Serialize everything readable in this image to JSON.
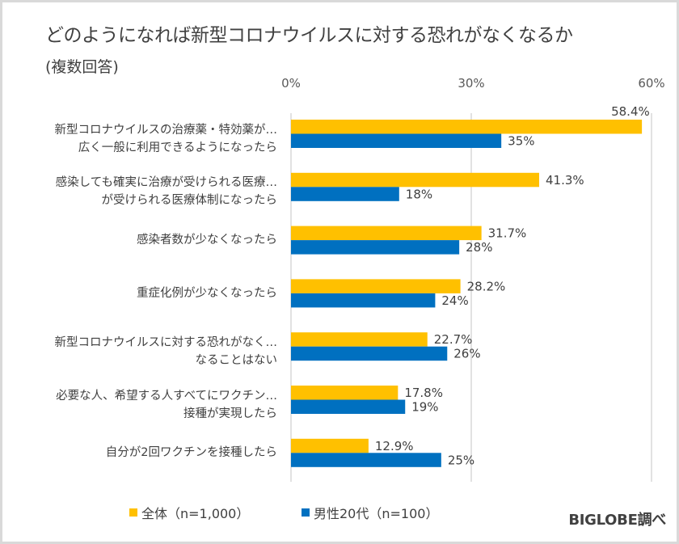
{
  "chart_data": {
    "type": "bar",
    "orientation": "horizontal",
    "title": "どのようになれば新型コロナウイルスに対する恐れがなくなるか",
    "subtitle": "(複数回答)",
    "xlabel": "",
    "ylabel": "",
    "xlim": [
      0,
      60
    ],
    "xticks": [
      0,
      30,
      60
    ],
    "xtick_labels": [
      "0%",
      "30%",
      "60%"
    ],
    "grid": true,
    "legend_position": "bottom",
    "categories": [
      [
        "新型コロナウイルスの治療薬・特効薬が…",
        "広く一般に利用できるようになったら"
      ],
      [
        "感染しても確実に治療が受けられる医療…",
        "が受けられる医療体制になったら"
      ],
      [
        "感染者数が少なくなったら"
      ],
      [
        "重症化例が少なくなったら"
      ],
      [
        "新型コロナウイルスに対する恐れがなく…",
        "なることはない"
      ],
      [
        "必要な人、希望する人すべてにワクチン…",
        "接種が実現したら"
      ],
      [
        "自分が2回ワクチンを接種したら"
      ]
    ],
    "series": [
      {
        "name": "全体（n=1,000）",
        "color": "#ffc000",
        "values": [
          58.4,
          41.3,
          31.7,
          28.2,
          22.7,
          17.8,
          12.9
        ],
        "labels": [
          "58.4%",
          "41.3%",
          "31.7%",
          "28.2%",
          "22.7%",
          "17.8%",
          "12.9%"
        ]
      },
      {
        "name": "男性20代（n=100）",
        "color": "#0070c0",
        "values": [
          35,
          18,
          28,
          24,
          26,
          19,
          25
        ],
        "labels": [
          "35%",
          "18%",
          "28%",
          "24%",
          "26%",
          "19%",
          "25%"
        ]
      }
    ],
    "source": "BIGLOBE調べ"
  }
}
